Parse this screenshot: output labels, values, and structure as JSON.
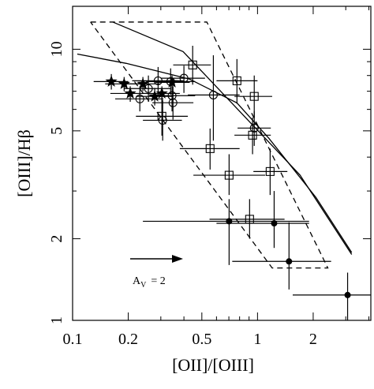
{
  "chart_data": {
    "type": "scatter",
    "xlabel": "[OII]/[OIII]",
    "ylabel": "[OIII]/Hβ",
    "xscale": "log",
    "yscale": "log",
    "xlim": [
      0.1,
      4.1
    ],
    "ylim": [
      1,
      14.4
    ],
    "xticks": [
      0.1,
      0.2,
      0.5,
      1,
      2
    ],
    "yticks": [
      1,
      2,
      5,
      10
    ],
    "xminor": [
      0.3,
      0.4,
      0.6,
      0.7,
      0.8,
      0.9,
      3,
      4
    ],
    "yminor": [
      3,
      4,
      6,
      7,
      8,
      9
    ],
    "annotation": {
      "main": "A",
      "sub": "V",
      "rest": "=  2"
    },
    "series": [
      {
        "marker": "star",
        "color": "#000000",
        "x": [
          0.162,
          0.19,
          0.205,
          0.24,
          0.278,
          0.304,
          0.345
        ],
        "y": [
          7.6,
          7.45,
          6.87,
          7.45,
          6.7,
          6.87,
          7.55
        ],
        "xlo": [
          0.13,
          0.15,
          0.16,
          0.19,
          0.22,
          0.24,
          0.28
        ],
        "xhi": [
          0.2,
          0.24,
          0.26,
          0.3,
          0.35,
          0.38,
          0.43
        ],
        "ylo": [
          7.1,
          7.0,
          6.4,
          7.0,
          6.2,
          6.4,
          7.1
        ],
        "yhi": [
          8.1,
          7.9,
          7.3,
          7.9,
          7.2,
          7.3,
          8.0
        ]
      },
      {
        "marker": "circle",
        "color": "#000000",
        "x": [
          0.231,
          0.257,
          0.29,
          0.339,
          0.4,
          0.345,
          0.349,
          0.307,
          0.577,
          0.96
        ],
        "y": [
          6.56,
          7.16,
          7.65,
          7.6,
          7.82,
          6.74,
          6.35,
          5.47,
          6.78,
          5.12
        ],
        "xlo": [
          0.17,
          0.19,
          0.21,
          0.25,
          0.3,
          0.26,
          0.27,
          0.24,
          0.42,
          0.78
        ],
        "xhi": [
          0.31,
          0.34,
          0.4,
          0.46,
          0.52,
          0.46,
          0.45,
          0.39,
          0.8,
          1.18
        ],
        "ylo": [
          5.9,
          6.4,
          6.8,
          6.8,
          6.9,
          5.9,
          5.5,
          4.6,
          4.6,
          4.4
        ],
        "yhi": [
          7.3,
          8.0,
          8.6,
          8.5,
          8.7,
          7.7,
          7.3,
          6.5,
          9.5,
          5.9
        ]
      },
      {
        "marker": "square",
        "color": "#000000",
        "x": [
          0.446,
          0.774,
          0.96,
          0.94,
          0.554,
          0.702,
          1.17,
          0.906,
          0.304
        ],
        "y": [
          8.75,
          7.65,
          6.7,
          4.82,
          4.3,
          3.43,
          3.54,
          2.36,
          5.66
        ],
        "xlo": [
          0.35,
          0.6,
          0.75,
          0.75,
          0.38,
          0.45,
          0.95,
          0.55,
          0.22
        ],
        "xhi": [
          0.56,
          1.0,
          1.2,
          1.18,
          0.8,
          1.1,
          1.45,
          1.4,
          0.42
        ],
        "ylo": [
          7.4,
          6.3,
          5.6,
          4.1,
          3.6,
          2.9,
          2.9,
          2.0,
          4.8
        ],
        "yhi": [
          10.3,
          9.2,
          8.0,
          5.6,
          5.1,
          4.1,
          4.3,
          2.8,
          6.7
        ]
      },
      {
        "marker": "dot",
        "color": "#000000",
        "x": [
          0.702,
          1.23,
          1.48,
          3.07
        ],
        "y": [
          2.32,
          2.28,
          1.65,
          1.24
        ],
        "xlo": [
          0.24,
          0.6,
          0.73,
          1.55
        ],
        "xhi": [
          1.9,
          1.9,
          2.5,
          4.1
        ],
        "ylo": [
          1.6,
          1.85,
          1.3,
          1.0
        ],
        "yhi": [
          2.8,
          3.0,
          2.3,
          1.5
        ]
      }
    ],
    "lines": [
      {
        "style": "solid",
        "x": [
          0.165,
          0.396,
          1.7,
          3.23
        ],
        "y": [
          12.6,
          9.8,
          3.43,
          1.75
        ]
      },
      {
        "style": "solid",
        "x": [
          0.106,
          0.195,
          0.429,
          0.774,
          1.15,
          2.07,
          3.23
        ],
        "y": [
          9.6,
          8.87,
          7.76,
          6.34,
          4.7,
          2.84,
          1.78
        ]
      },
      {
        "style": "dashed",
        "x": [
          0.125,
          0.532,
          2.4,
          1.2,
          0.125
        ],
        "y": [
          12.6,
          12.6,
          1.56,
          1.56,
          12.6
        ]
      }
    ]
  }
}
